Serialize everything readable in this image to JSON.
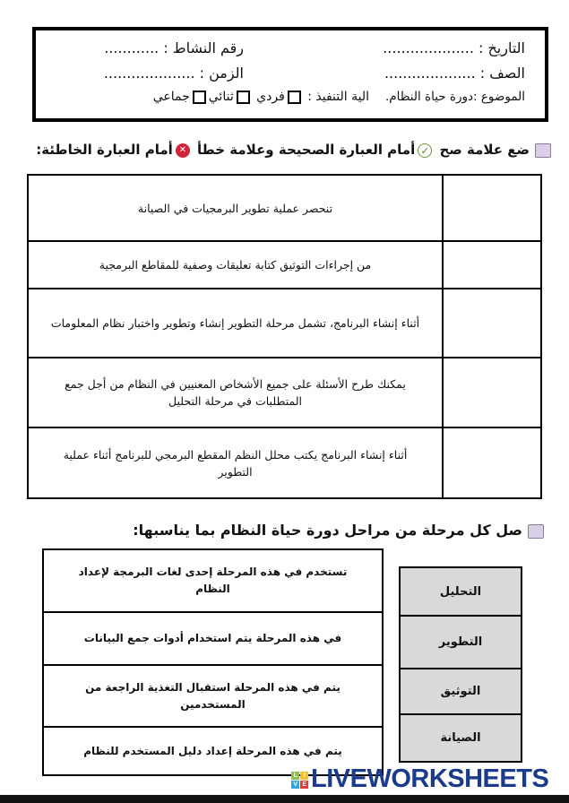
{
  "header": {
    "date_label": "التاريخ : ....................",
    "activity_label": "رقم النشاط  : ............",
    "class_label": "الصف : ....................",
    "time_label": "الزمن  : ....................",
    "topic_label": "الموضوع :دورة حياة النظام.",
    "mode_label": "الية التنفيذ :",
    "modes": [
      "فردي",
      "ثنائي",
      "جماعي"
    ]
  },
  "section1": {
    "instruction_part1": "ضع علامة صح",
    "instruction_part2": "أمام العبارة الصحيحة وعلامة خطأ",
    "instruction_part3": "أمام العبارة الخاطئة:",
    "statements": [
      "تنحصر عملية تطوير البرمجيات في الصيانة",
      "من إجراءات التوثيق كتابة تعليقات وصفية للمقاطع البرمجية",
      "أثناء إنشاء البرنامج، تشمل مرحلة التطوير إنشاء وتطوير واختبار نظام المعلومات",
      "يمكنك طرح الأسئلة  على جميع الأشخاص المعنيين في النظام من أجل جمع المتطلبات في مرحلة التحليل",
      "أثناء إنشاء البرنامج يكتب محلل النظم المقطع البرمجي للبرنامج أثناء عملية التطوير"
    ]
  },
  "section2": {
    "instruction": "صل كل مرحلة من مراحل دورة حياة النظام بما يناسبها:",
    "descriptions": [
      "تستخدم في هذه المرحلة إحدى لغات البرمجة لإعداد النظام",
      "في هذه المرحلة يتم استخدام أدوات جمع البيانات",
      "يتم في هذه المرحلة استقبال التغذية الراجعة من المستخدمين",
      "يتم في هذه المرحلة إعداد دليل المستخدم للنظام"
    ],
    "stages": [
      "التحليل",
      "التطوير",
      "التوثيق",
      "الصيانة"
    ]
  },
  "logo": {
    "text": "LIVEWORKSHEETS",
    "badge": [
      "L",
      "I",
      "V",
      "E"
    ]
  }
}
